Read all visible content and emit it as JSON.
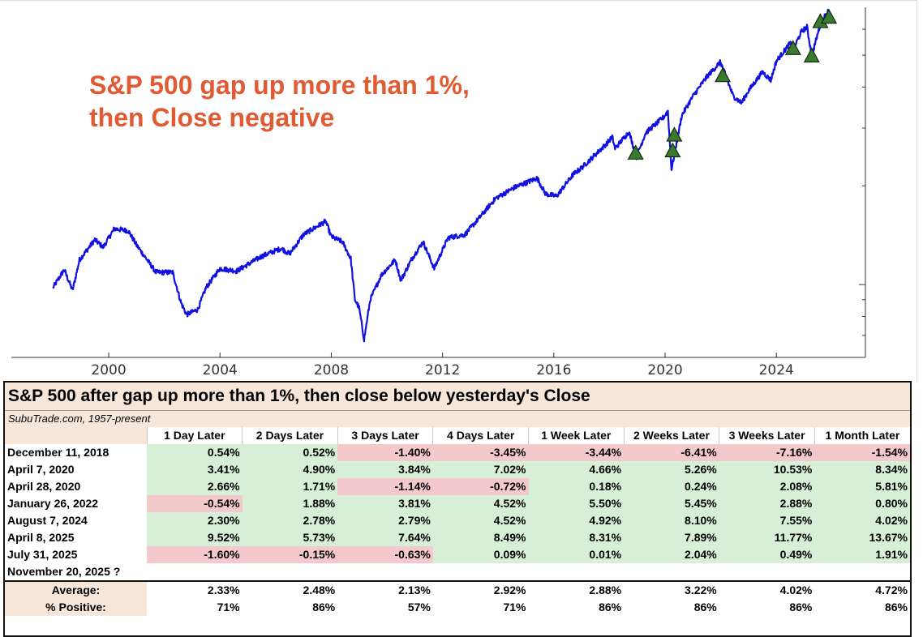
{
  "chart_data": {
    "type": "line",
    "annotation_lines": [
      "S&P 500 gap up more than 1%,",
      "then Close negative"
    ],
    "xlabel": "",
    "ylabel": "",
    "x_ticks": [
      "2000",
      "2004",
      "2008",
      "2012",
      "2016",
      "2020",
      "2024"
    ],
    "xlim": [
      1996.5,
      2027.2
    ],
    "y_scale": "log",
    "ylim": [
      600,
      7000
    ],
    "series": [
      {
        "name": "S&P 500",
        "color": "#1010e0",
        "points": [
          [
            1998.0,
            980
          ],
          [
            1998.4,
            1110
          ],
          [
            1998.7,
            960
          ],
          [
            1998.95,
            1190
          ],
          [
            1999.5,
            1370
          ],
          [
            1999.8,
            1300
          ],
          [
            2000.2,
            1480
          ],
          [
            2000.7,
            1460
          ],
          [
            2001.0,
            1320
          ],
          [
            2001.7,
            1090
          ],
          [
            2002.3,
            1090
          ],
          [
            2002.6,
            880
          ],
          [
            2002.8,
            810
          ],
          [
            2003.2,
            840
          ],
          [
            2003.5,
            980
          ],
          [
            2004.0,
            1120
          ],
          [
            2004.6,
            1100
          ],
          [
            2005.5,
            1220
          ],
          [
            2006.2,
            1290
          ],
          [
            2006.5,
            1240
          ],
          [
            2007.0,
            1420
          ],
          [
            2007.8,
            1560
          ],
          [
            2008.0,
            1400
          ],
          [
            2008.4,
            1350
          ],
          [
            2008.7,
            1200
          ],
          [
            2008.85,
            900
          ],
          [
            2009.0,
            850
          ],
          [
            2009.18,
            680
          ],
          [
            2009.4,
            900
          ],
          [
            2009.8,
            1070
          ],
          [
            2010.3,
            1190
          ],
          [
            2010.5,
            1030
          ],
          [
            2010.9,
            1200
          ],
          [
            2011.3,
            1350
          ],
          [
            2011.7,
            1120
          ],
          [
            2012.2,
            1390
          ],
          [
            2012.8,
            1420
          ],
          [
            2013.3,
            1590
          ],
          [
            2013.9,
            1830
          ],
          [
            2014.6,
            1980
          ],
          [
            2015.4,
            2110
          ],
          [
            2015.7,
            1890
          ],
          [
            2016.1,
            1860
          ],
          [
            2016.7,
            2170
          ],
          [
            2017.0,
            2270
          ],
          [
            2017.9,
            2690
          ],
          [
            2018.1,
            2820
          ],
          [
            2018.2,
            2600
          ],
          [
            2018.7,
            2920
          ],
          [
            2018.97,
            2450
          ],
          [
            2019.3,
            2900
          ],
          [
            2019.95,
            3240
          ],
          [
            2020.1,
            3380
          ],
          [
            2020.23,
            2240
          ],
          [
            2020.6,
            3280
          ],
          [
            2021.0,
            3750
          ],
          [
            2021.5,
            4300
          ],
          [
            2021.99,
            4770
          ],
          [
            2022.45,
            3750
          ],
          [
            2022.75,
            3580
          ],
          [
            2023.0,
            3900
          ],
          [
            2023.5,
            4450
          ],
          [
            2023.8,
            4200
          ],
          [
            2024.0,
            4800
          ],
          [
            2024.5,
            5450
          ],
          [
            2024.6,
            5200
          ],
          [
            2024.9,
            5900
          ],
          [
            2025.1,
            6100
          ],
          [
            2025.27,
            4980
          ],
          [
            2025.6,
            6300
          ],
          [
            2025.85,
            6800
          ],
          [
            2025.95,
            6650
          ]
        ]
      }
    ],
    "markers": [
      {
        "date": "December 11, 2018",
        "x": 2018.94,
        "y": 2520
      },
      {
        "date": "April 7, 2020",
        "x": 2020.27,
        "y": 2560
      },
      {
        "date": "April 28, 2020",
        "x": 2020.33,
        "y": 2860
      },
      {
        "date": "January 26, 2022",
        "x": 2022.07,
        "y": 4340
      },
      {
        "date": "August 7, 2024",
        "x": 2024.6,
        "y": 5250
      },
      {
        "date": "April 8, 2025",
        "x": 2025.27,
        "y": 4980
      },
      {
        "date": "July 31, 2025",
        "x": 2025.58,
        "y": 6340
      },
      {
        "date": "November 20, 2025 ?",
        "x": 2025.89,
        "y": 6540
      }
    ],
    "marker_color": "#3a7a30"
  },
  "table": {
    "title": "S&P 500 after gap up more than 1%, then close below yesterday's Close",
    "source": "SubuTrade.com, 1957-present",
    "columns": [
      "1 Day Later",
      "2 Days Later",
      "3 Days Later",
      "4 Days Later",
      "1 Week Later",
      "2 Weeks Later",
      "3 Weeks Later",
      "1 Month Later"
    ],
    "rows": [
      {
        "date": "December 11, 2018",
        "values": [
          "0.54%",
          "0.52%",
          "-1.40%",
          "-3.45%",
          "-3.44%",
          "-6.41%",
          "-7.16%",
          "-1.54%"
        ]
      },
      {
        "date": "April 7, 2020",
        "values": [
          "3.41%",
          "4.90%",
          "3.84%",
          "7.02%",
          "4.66%",
          "5.26%",
          "10.53%",
          "8.34%"
        ]
      },
      {
        "date": "April 28, 2020",
        "values": [
          "2.66%",
          "1.71%",
          "-1.14%",
          "-0.72%",
          "0.18%",
          "0.24%",
          "2.08%",
          "5.81%"
        ]
      },
      {
        "date": "January 26, 2022",
        "values": [
          "-0.54%",
          "1.88%",
          "3.81%",
          "4.52%",
          "5.50%",
          "5.45%",
          "2.88%",
          "0.80%"
        ]
      },
      {
        "date": "August 7, 2024",
        "values": [
          "2.30%",
          "2.78%",
          "2.79%",
          "4.52%",
          "4.92%",
          "8.10%",
          "7.55%",
          "4.02%"
        ]
      },
      {
        "date": "April 8, 2025",
        "values": [
          "9.52%",
          "5.73%",
          "7.64%",
          "8.49%",
          "8.31%",
          "7.89%",
          "11.77%",
          "13.67%"
        ]
      },
      {
        "date": "July 31, 2025",
        "values": [
          "-1.60%",
          "-0.15%",
          "-0.63%",
          "0.09%",
          "0.01%",
          "2.04%",
          "0.49%",
          "1.91%"
        ]
      },
      {
        "date": "November 20, 2025 ?",
        "values": [
          "",
          "",
          "",
          "",
          "",
          "",
          "",
          ""
        ]
      }
    ],
    "average_label": "Average:",
    "average": [
      "2.33%",
      "2.48%",
      "2.13%",
      "2.92%",
      "2.88%",
      "3.22%",
      "4.02%",
      "4.72%"
    ],
    "positive_label": "% Positive:",
    "positive": [
      "71%",
      "86%",
      "57%",
      "71%",
      "86%",
      "86%",
      "86%",
      "86%"
    ],
    "positive_color": "#d6efd6",
    "negative_color": "#f4c9cc"
  }
}
